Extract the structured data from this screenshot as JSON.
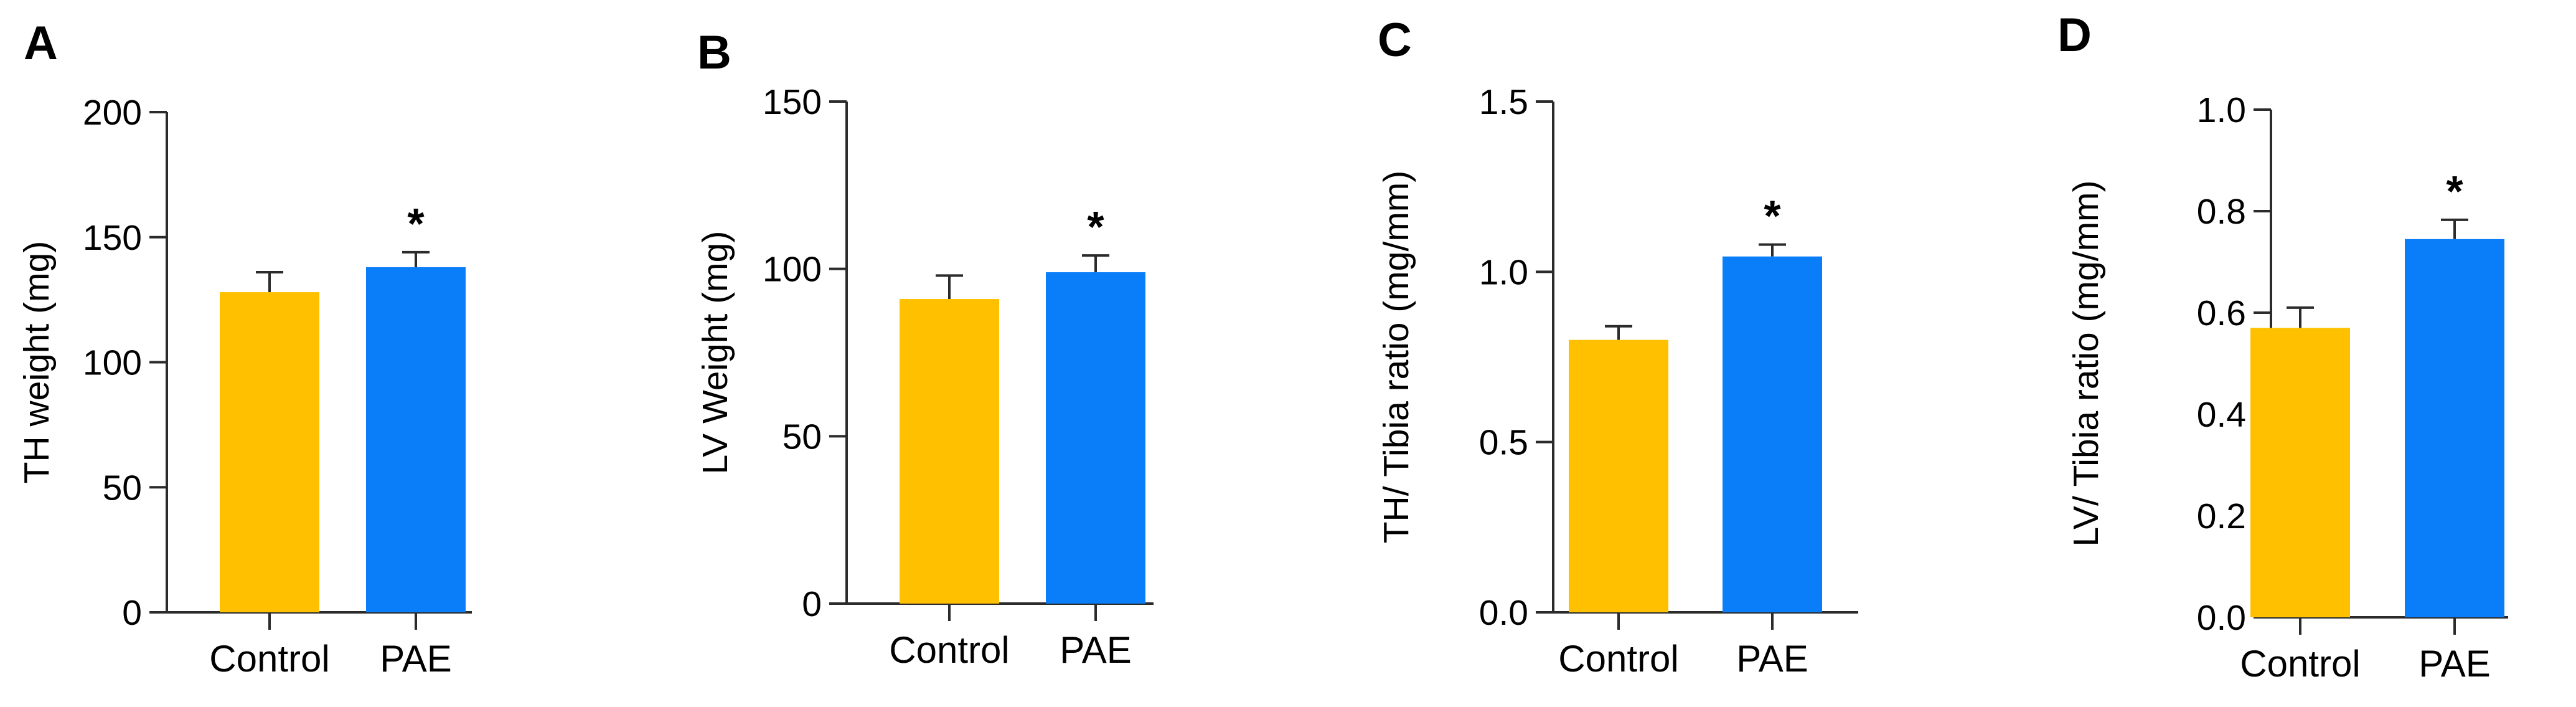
{
  "colors": {
    "control": "#FFC000",
    "pae": "#0A7EF9",
    "axis": "#2b2b2b",
    "text": "#000000"
  },
  "chart_data": [
    {
      "type": "bar",
      "panel": "A",
      "categories": [
        "Control",
        "PAE"
      ],
      "values": [
        128,
        138
      ],
      "errors": [
        8,
        6
      ],
      "significance": [
        "",
        "*"
      ],
      "title": "",
      "xlabel": "",
      "ylabel": "TH weight (mg)",
      "ylim": [
        0,
        200
      ],
      "yticks": [
        0,
        50,
        100,
        150,
        200
      ],
      "ytick_labels": [
        "0",
        "50",
        "100",
        "150",
        "200"
      ],
      "grid": false
    },
    {
      "type": "bar",
      "panel": "B",
      "categories": [
        "Control",
        "PAE"
      ],
      "values": [
        91,
        99
      ],
      "errors": [
        7,
        5
      ],
      "significance": [
        "",
        "*"
      ],
      "title": "",
      "xlabel": "",
      "ylabel": "LV Weight (mg)",
      "ylim": [
        0,
        150
      ],
      "yticks": [
        0,
        50,
        100,
        150
      ],
      "ytick_labels": [
        "0",
        "50",
        "100",
        "150"
      ],
      "grid": false
    },
    {
      "type": "bar",
      "panel": "C",
      "categories": [
        "Control",
        "PAE"
      ],
      "values": [
        0.8,
        1.045
      ],
      "errors": [
        0.04,
        0.035
      ],
      "significance": [
        "",
        "*"
      ],
      "title": "",
      "xlabel": "",
      "ylabel": "TH/ Tibia ratio (mg/mm)",
      "ylim": [
        0,
        1.5
      ],
      "yticks": [
        0,
        0.5,
        1.0,
        1.5
      ],
      "ytick_labels": [
        "0.0",
        "0.5",
        "1.0",
        "1.5"
      ],
      "grid": false
    },
    {
      "type": "bar",
      "panel": "D",
      "categories": [
        "Control",
        "PAE"
      ],
      "values": [
        0.57,
        0.745
      ],
      "errors": [
        0.04,
        0.038
      ],
      "significance": [
        "",
        "*"
      ],
      "title": "",
      "xlabel": "",
      "ylabel": "LV/ Tibia ratio (mg/mm)",
      "ylim": [
        0,
        1.0
      ],
      "yticks": [
        0,
        0.2,
        0.4,
        0.6,
        0.8,
        1.0
      ],
      "ytick_labels": [
        "0.0",
        "0.2",
        "0.4",
        "0.6",
        "0.8",
        "1.0"
      ],
      "grid": false
    }
  ]
}
